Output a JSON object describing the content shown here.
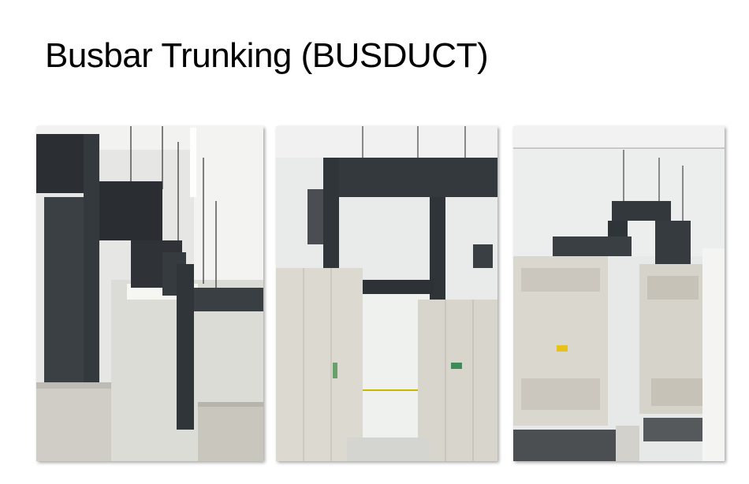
{
  "slide": {
    "title": "Busbar Trunking (BUSDUCT)"
  },
  "photos": [
    {
      "subject": "busduct-overhead-runs-photo"
    },
    {
      "subject": "busduct-switchgear-room-photo"
    },
    {
      "subject": "busduct-transformer-room-photo"
    }
  ],
  "colors": {
    "background": "#ffffff",
    "title": "#000000",
    "busduct": "#2e3338",
    "cabinet": "#d9d6cf",
    "wall": "#e9ebea"
  }
}
